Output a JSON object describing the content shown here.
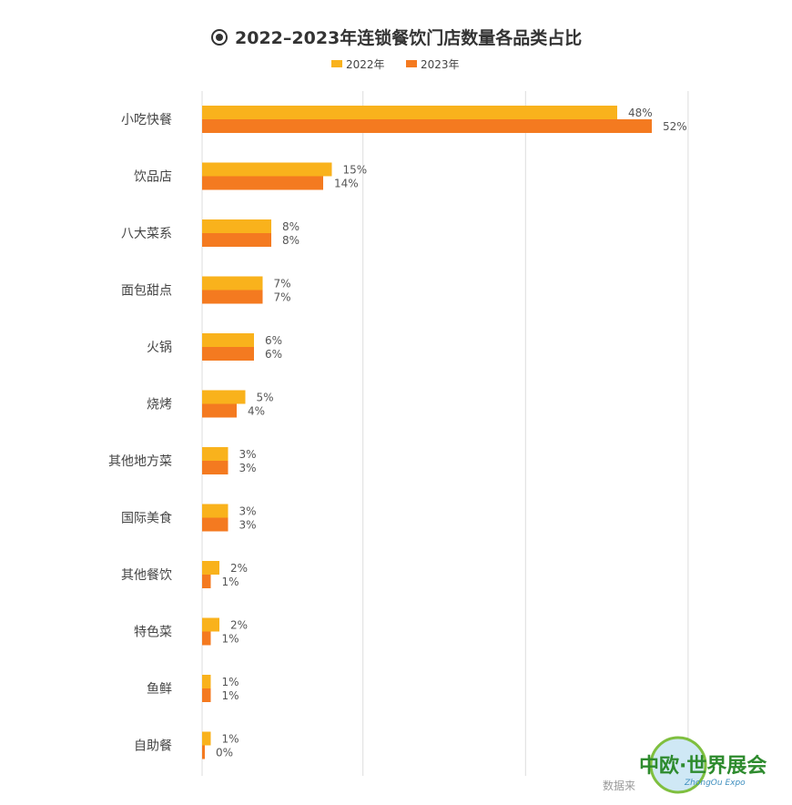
{
  "chart_data": {
    "type": "bar",
    "orientation": "horizontal",
    "title": "2022–2023年连锁餐饮门店数量各品类占比",
    "categories": [
      "小吃快餐",
      "饮品店",
      "八大菜系",
      "面包甜点",
      "火锅",
      "烧烤",
      "其他地方菜",
      "国际美食",
      "其他餐饮",
      "特色菜",
      "鱼鲜",
      "自助餐"
    ],
    "series": [
      {
        "name": "2022年",
        "color": "#F9B21C",
        "values": [
          48,
          15,
          8,
          7,
          6,
          5,
          3,
          3,
          2,
          2,
          1,
          1
        ],
        "labels": [
          "48%",
          "15%",
          "8%",
          "7%",
          "6%",
          "5%",
          "3%",
          "3%",
          "2%",
          "2%",
          "1%",
          "1%"
        ]
      },
      {
        "name": "2023年",
        "color": "#F47A20",
        "values": [
          52,
          14,
          8,
          7,
          6,
          4,
          3,
          3,
          1,
          1,
          1,
          0
        ],
        "labels": [
          "52%",
          "14%",
          "8%",
          "7%",
          "6%",
          "4%",
          "3%",
          "3%",
          "1%",
          "1%",
          "1%",
          "0%"
        ]
      }
    ],
    "xlim": [
      0,
      60
    ],
    "grid": true,
    "legend_position": "top-center"
  },
  "source_text": "数据来",
  "watermark": {
    "text": "中欧·世界展会",
    "subtext": "ZhongOu Expo"
  },
  "colors": {
    "title_icon": "#333333",
    "grid": "#dddddd"
  }
}
